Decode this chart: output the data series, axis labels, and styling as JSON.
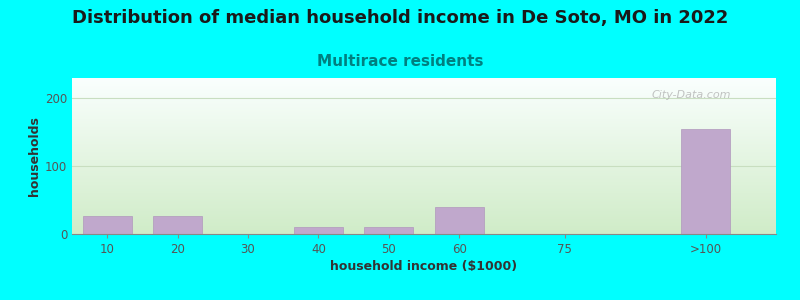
{
  "title": "Distribution of median household income in De Soto, MO in 2022",
  "subtitle": "Multirace residents",
  "xlabel": "household income ($1000)",
  "ylabel": "households",
  "background_color": "#00FFFF",
  "plot_bg_top": "#FAFFFE",
  "plot_bg_bottom": "#D0ECC8",
  "bar_color": "#C0A8CC",
  "bar_edge_color": "#B098BC",
  "title_color": "#1a1a1a",
  "subtitle_color": "#008080",
  "axis_label_color": "#333333",
  "tick_color": "#555555",
  "watermark": "City-Data.com",
  "categories": [
    "10",
    "20",
    "30",
    "40",
    "50",
    "60",
    "75",
    ">100"
  ],
  "values": [
    27,
    27,
    0,
    10,
    10,
    40,
    0,
    155
  ],
  "ylim": [
    0,
    230
  ],
  "yticks": [
    0,
    100,
    200
  ],
  "grid_color": "#C8DEC0",
  "title_fontsize": 13,
  "subtitle_fontsize": 11,
  "axis_label_fontsize": 9
}
